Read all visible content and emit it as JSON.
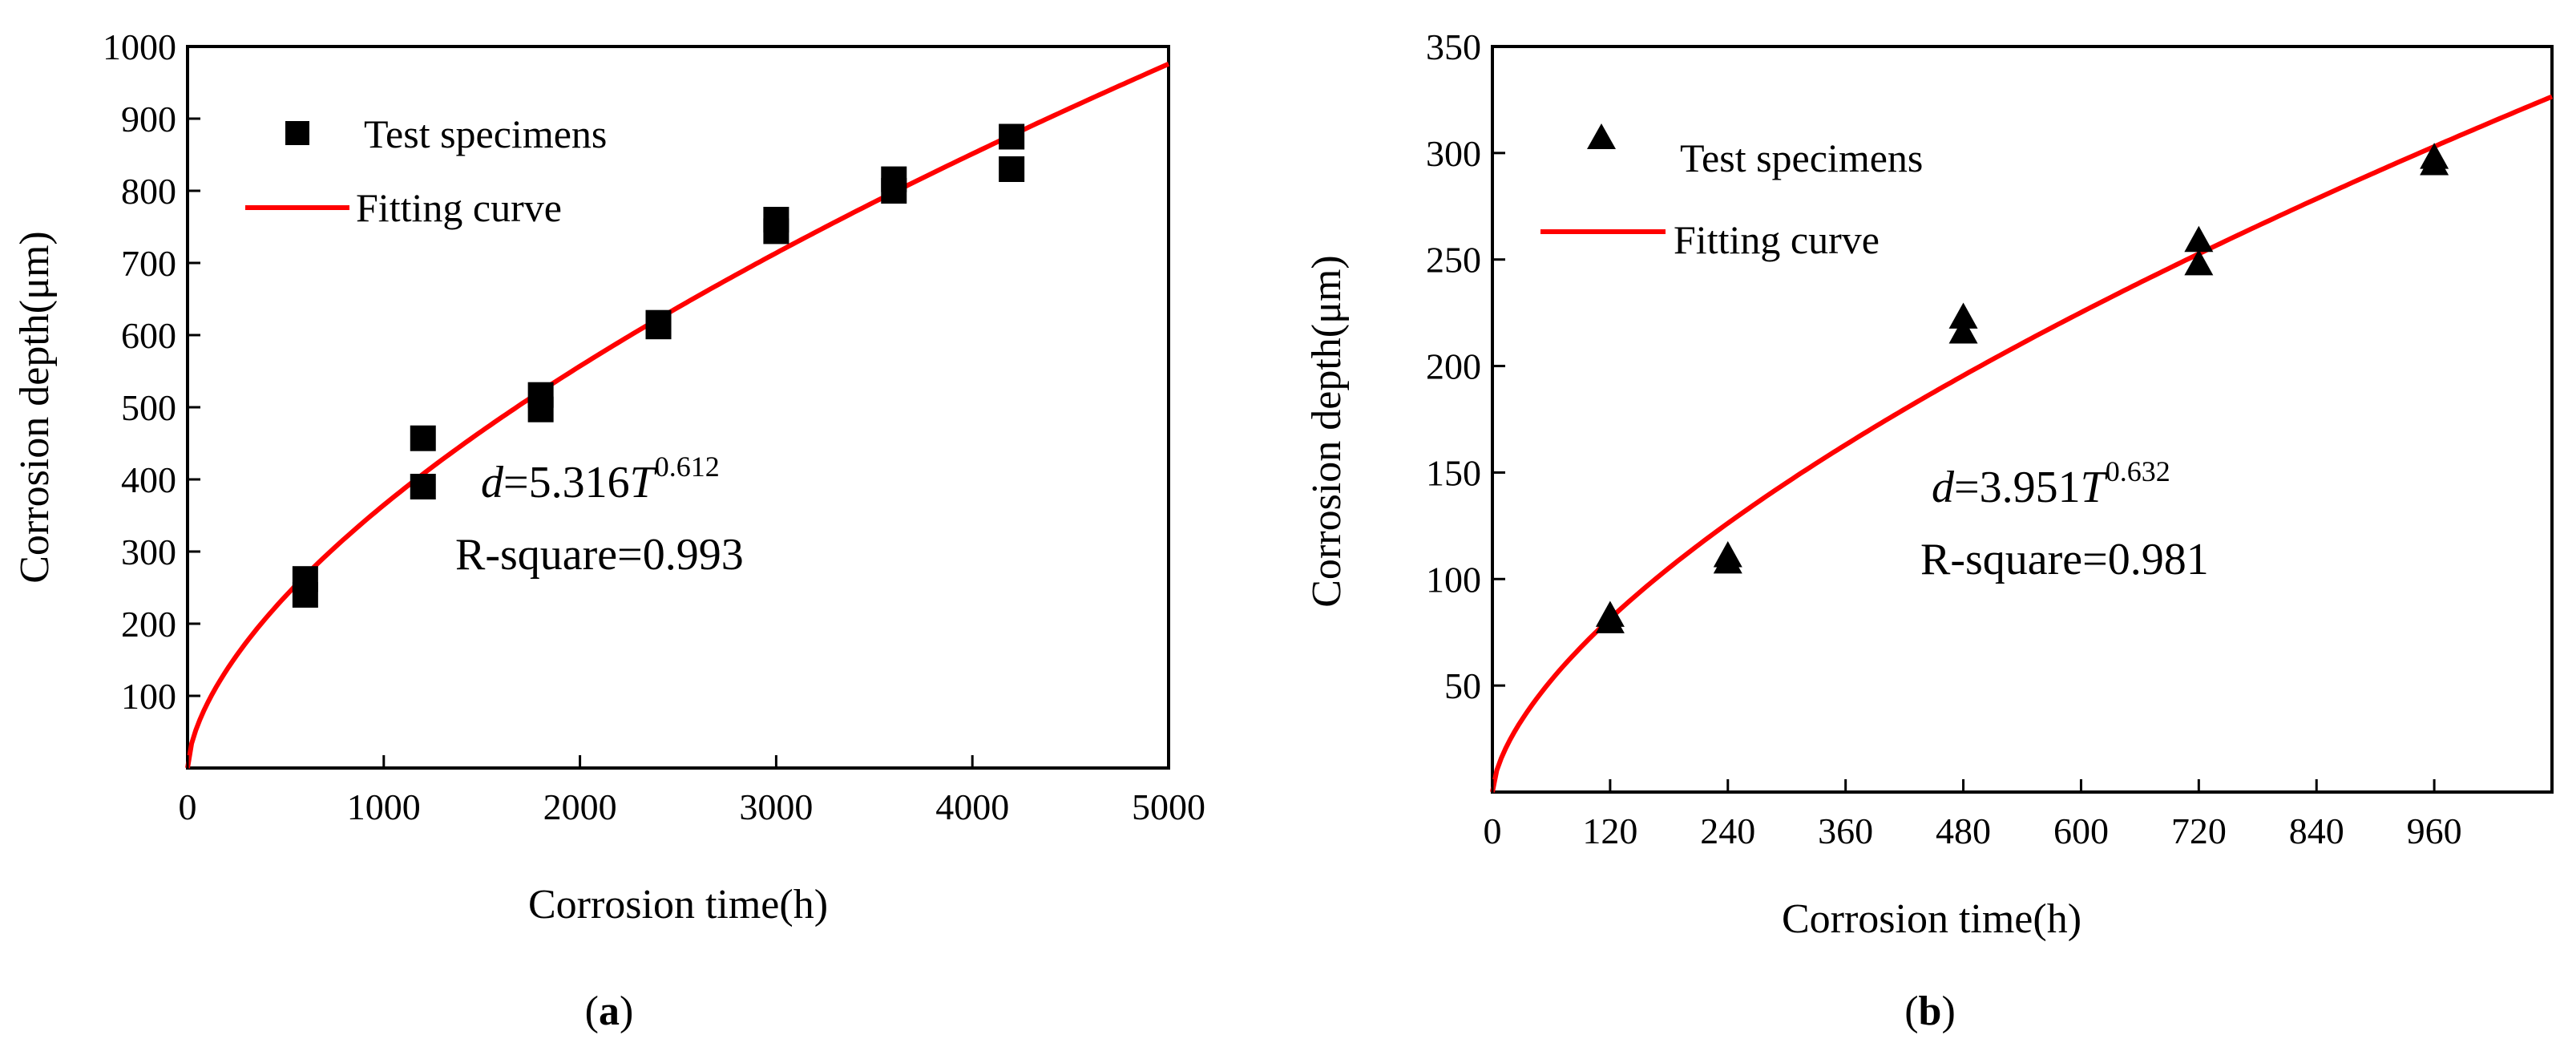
{
  "chart_data": [
    {
      "type": "scatter",
      "panel": "a",
      "xlabel": "Corrosion time(h)",
      "ylabel": "Corrosion depth(μm)",
      "xlim": [
        0,
        5000
      ],
      "ylim": [
        0,
        1000
      ],
      "x_ticks": [
        0,
        1000,
        2000,
        3000,
        4000,
        5000
      ],
      "y_ticks": [
        100,
        200,
        300,
        400,
        500,
        600,
        700,
        800,
        900,
        1000
      ],
      "grid": false,
      "legend_position": "top-left",
      "series": [
        {
          "name": "Test specimens",
          "marker": "square",
          "color": "#000000",
          "points": [
            {
              "x": 600,
              "y": 240
            },
            {
              "x": 600,
              "y": 262
            },
            {
              "x": 1200,
              "y": 390
            },
            {
              "x": 1200,
              "y": 457
            },
            {
              "x": 1800,
              "y": 497
            },
            {
              "x": 1800,
              "y": 517
            },
            {
              "x": 2400,
              "y": 612
            },
            {
              "x": 2400,
              "y": 617
            },
            {
              "x": 3000,
              "y": 744
            },
            {
              "x": 3000,
              "y": 760
            },
            {
              "x": 3600,
              "y": 800
            },
            {
              "x": 3600,
              "y": 816
            },
            {
              "x": 4200,
              "y": 830
            },
            {
              "x": 4200,
              "y": 875
            }
          ]
        },
        {
          "name": "Fitting curve",
          "type": "line",
          "color": "#ff0000",
          "coefficient": 5.316,
          "exponent": 0.612,
          "x_range": [
            0,
            5000
          ]
        }
      ],
      "annotation": {
        "var": "d",
        "eq_mid": "=5.316",
        "var2": "T",
        "exp": "0.612",
        "r_square": "R-square=0.993"
      },
      "label_open": "(",
      "label_letter": "a",
      "label_close": ")"
    },
    {
      "type": "scatter",
      "panel": "b",
      "xlabel": "Corrosion time(h)",
      "ylabel": "Corrosion depth(μm)",
      "xlim": [
        0,
        1080
      ],
      "ylim": [
        0,
        350
      ],
      "x_ticks": [
        0,
        120,
        240,
        360,
        480,
        600,
        720,
        840,
        960
      ],
      "y_ticks": [
        50,
        100,
        150,
        200,
        250,
        300,
        350
      ],
      "grid": false,
      "legend_position": "top-left",
      "series": [
        {
          "name": "Test specimens",
          "marker": "triangle",
          "color": "#000000",
          "points": [
            {
              "x": 120,
              "y": 80
            },
            {
              "x": 120,
              "y": 83
            },
            {
              "x": 240,
              "y": 108
            },
            {
              "x": 240,
              "y": 111
            },
            {
              "x": 480,
              "y": 216
            },
            {
              "x": 480,
              "y": 223
            },
            {
              "x": 720,
              "y": 248
            },
            {
              "x": 720,
              "y": 259
            },
            {
              "x": 960,
              "y": 295
            },
            {
              "x": 960,
              "y": 298
            }
          ]
        },
        {
          "name": "Fitting curve",
          "type": "line",
          "color": "#ff0000",
          "coefficient": 3.951,
          "exponent": 0.632,
          "x_range": [
            0,
            1080
          ]
        }
      ],
      "annotation": {
        "var": "d",
        "eq_mid": "=3.951",
        "var2": "T",
        "exp": "0.632",
        "r_square": "R-square=0.981"
      },
      "label_open": "(",
      "label_letter": "b",
      "label_close": ")"
    }
  ]
}
